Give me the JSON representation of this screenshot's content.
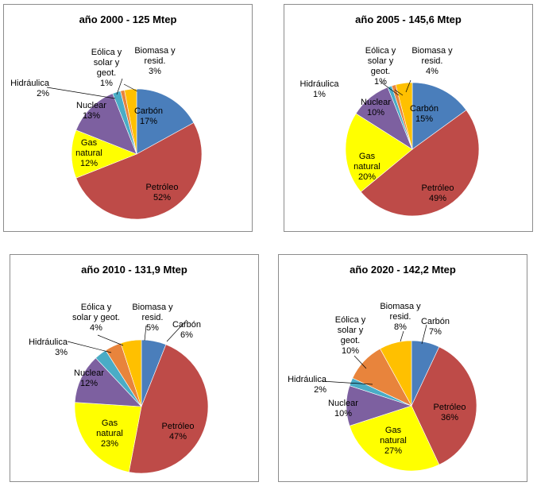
{
  "chart_data": [
    {
      "type": "pie",
      "title": "año 2000 - 125 Mtep",
      "slices": [
        {
          "label": "Carbón",
          "value": 17,
          "text": "17%",
          "color": "#4a7ebb"
        },
        {
          "label": "Petróleo",
          "value": 52,
          "text": "52%",
          "color": "#be4b48"
        },
        {
          "label": "Gas natural",
          "value": 12,
          "text": "12%",
          "color": "#ffff00"
        },
        {
          "label": "Nuclear",
          "value": 13,
          "text": "13%",
          "color": "#7d60a0"
        },
        {
          "label": "Hidráulica",
          "value": 2,
          "text": "2%",
          "color": "#4aacc6"
        },
        {
          "label": "Eólica y solar y geot.",
          "value": 1,
          "text": "1%",
          "color": "#e8843c"
        },
        {
          "label": "Biomasa y resid.",
          "value": 3,
          "text": "3%",
          "color": "#ffc000"
        }
      ]
    },
    {
      "type": "pie",
      "title": "año 2005 - 145,6 Mtep",
      "slices": [
        {
          "label": "Carbón",
          "value": 15,
          "text": "15%",
          "color": "#4a7ebb"
        },
        {
          "label": "Petróleo",
          "value": 49,
          "text": "49%",
          "color": "#be4b48"
        },
        {
          "label": "Gas natural",
          "value": 20,
          "text": "20%",
          "color": "#ffff00"
        },
        {
          "label": "Nuclear",
          "value": 10,
          "text": "10%",
          "color": "#7d60a0"
        },
        {
          "label": "Hidráulica",
          "value": 1,
          "text": "1%",
          "color": "#4aacc6"
        },
        {
          "label": "Eólica y solar y geot.",
          "value": 1,
          "text": "1%",
          "color": "#e8843c"
        },
        {
          "label": "Biomasa y resid.",
          "value": 4,
          "text": "4%",
          "color": "#ffc000"
        }
      ]
    },
    {
      "type": "pie",
      "title": "año 2010 - 131,9 Mtep",
      "slices": [
        {
          "label": "Carbón",
          "value": 6,
          "text": "6%",
          "color": "#4a7ebb"
        },
        {
          "label": "Petróleo",
          "value": 47,
          "text": "47%",
          "color": "#be4b48"
        },
        {
          "label": "Gas natural",
          "value": 23,
          "text": "23%",
          "color": "#ffff00"
        },
        {
          "label": "Nuclear",
          "value": 12,
          "text": "12%",
          "color": "#7d60a0"
        },
        {
          "label": "Hidráulica",
          "value": 3,
          "text": "3%",
          "color": "#4aacc6"
        },
        {
          "label": "Eólica y solar y geot.",
          "value": 4,
          "text": "4%",
          "color": "#e8843c"
        },
        {
          "label": "Biomasa y resid.",
          "value": 5,
          "text": "5%",
          "color": "#ffc000"
        }
      ]
    },
    {
      "type": "pie",
      "title": "año 2020 - 142,2 Mtep",
      "slices": [
        {
          "label": "Carbón",
          "value": 7,
          "text": "7%",
          "color": "#4a7ebb"
        },
        {
          "label": "Petróleo",
          "value": 36,
          "text": "36%",
          "color": "#be4b48"
        },
        {
          "label": "Gas natural",
          "value": 27,
          "text": "27%",
          "color": "#ffff00"
        },
        {
          "label": "Nuclear",
          "value": 10,
          "text": "10%",
          "color": "#7d60a0"
        },
        {
          "label": "Hidráulica",
          "value": 2,
          "text": "2%",
          "color": "#4aacc6"
        },
        {
          "label": "Eólica y solar y geot.",
          "value": 10,
          "text": "10%",
          "color": "#e8843c"
        },
        {
          "label": "Biomasa y resid.",
          "value": 8,
          "text": "8%",
          "color": "#ffc000"
        }
      ]
    }
  ]
}
